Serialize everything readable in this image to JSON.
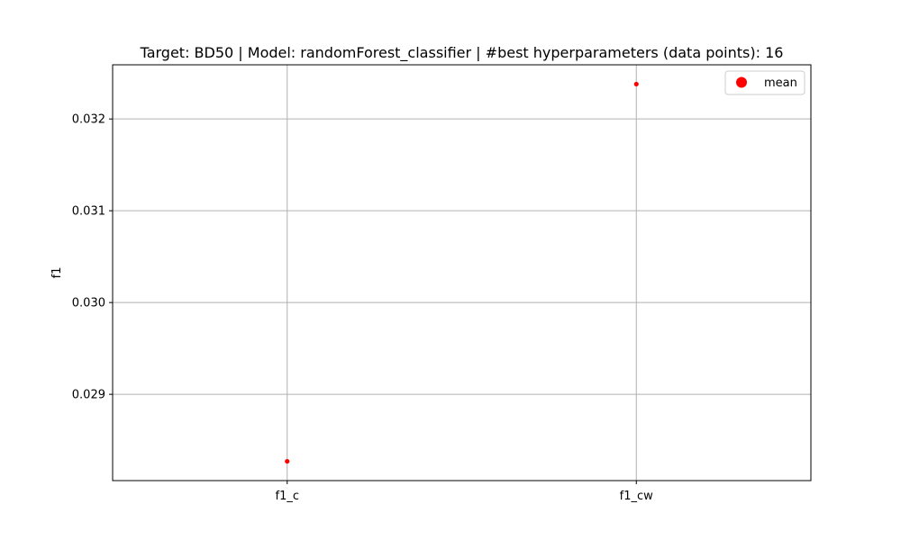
{
  "chart_data": {
    "type": "scatter",
    "title": "Target: BD50 | Model: randomForest_classifier | #best hyperparameters (data points): 16",
    "xlabel": "",
    "ylabel": "f1",
    "categories": [
      "f1_c",
      "f1_cw"
    ],
    "series": [
      {
        "name": "mean",
        "color": "#ff0000",
        "values": [
          0.02827,
          0.03238
        ]
      }
    ],
    "ylim": [
      0.02806,
      0.03259
    ],
    "yticks": [
      0.029,
      0.03,
      0.031,
      0.032
    ],
    "ytick_labels": [
      "0.029",
      "0.030",
      "0.031",
      "0.032"
    ],
    "grid": true,
    "legend_position": "upper right"
  }
}
